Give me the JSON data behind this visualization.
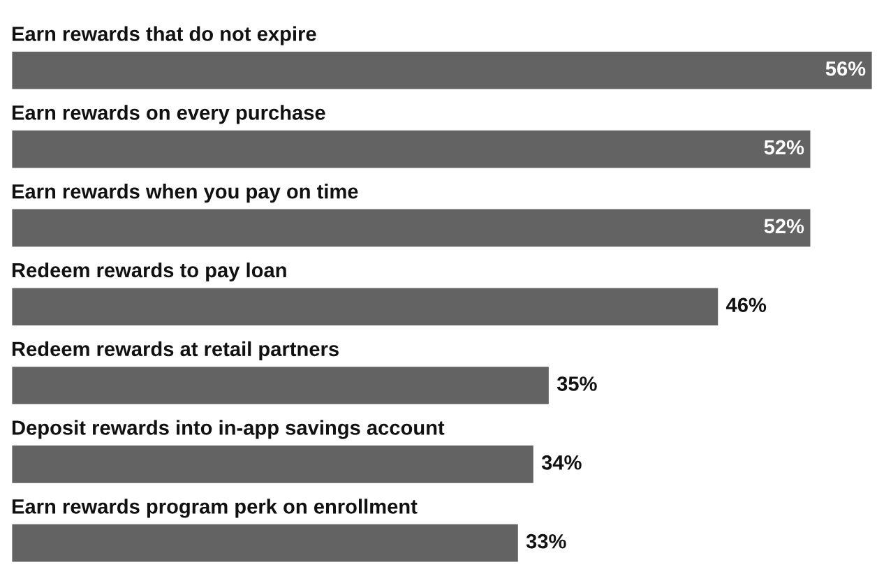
{
  "chart_data": {
    "type": "bar",
    "orientation": "horizontal",
    "categories": [
      "Earn rewards that do not expire",
      "Earn rewards on every purchase",
      "Earn rewards when you pay on time",
      "Redeem rewards to pay loan",
      "Redeem rewards at retail partners",
      "Deposit rewards into in-app savings account",
      "Earn rewards program perk on enrollment"
    ],
    "values": [
      56,
      52,
      52,
      46,
      35,
      34,
      33
    ],
    "value_labels": [
      "56%",
      "52%",
      "52%",
      "46%",
      "35%",
      "34%",
      "33%"
    ],
    "color": "#636363"
  }
}
